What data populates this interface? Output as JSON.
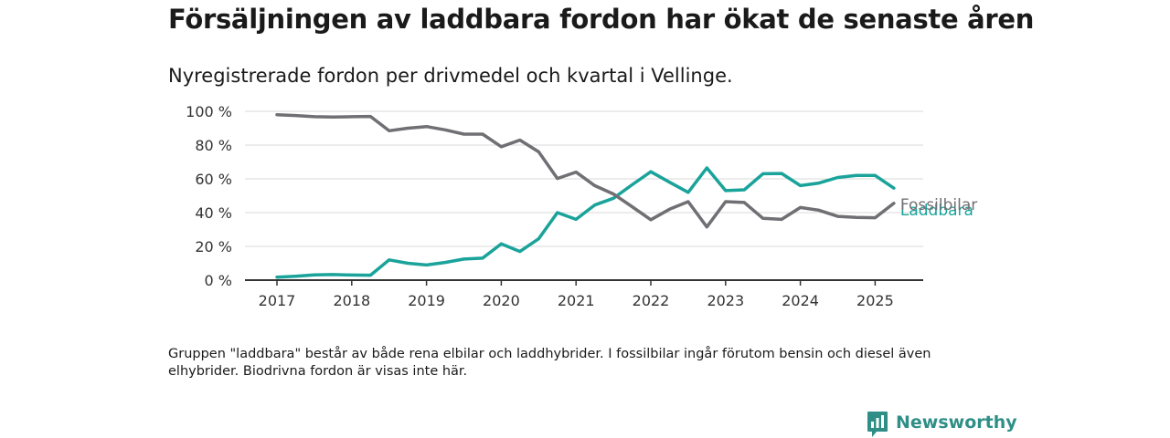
{
  "header": {
    "title": "Försäljningen av laddbara fordon har ökat de senaste åren",
    "subtitle": "Nyregistrerade fordon per drivmedel och kvartal i Vellinge."
  },
  "footer": {
    "note": "Gruppen \"laddbara\" består av både rena elbilar och laddhybrider. I fossilbilar ingår förutom bensin och diesel även elhybrider. Biodrivna fordon är visas inte här.",
    "brand": "Newsworthy",
    "brand_icon": "bar-chart-speech-bubble-icon",
    "brand_color": "#2f8f87"
  },
  "chart_data": {
    "type": "line",
    "x": [
      "2017-Q1",
      "2017-Q2",
      "2017-Q3",
      "2017-Q4",
      "2018-Q1",
      "2018-Q2",
      "2018-Q3",
      "2018-Q4",
      "2019-Q1",
      "2019-Q2",
      "2019-Q3",
      "2019-Q4",
      "2020-Q1",
      "2020-Q2",
      "2020-Q3",
      "2020-Q4",
      "2021-Q1",
      "2021-Q2",
      "2021-Q3",
      "2021-Q4",
      "2022-Q1",
      "2022-Q2",
      "2022-Q3",
      "2022-Q4",
      "2023-Q1",
      "2023-Q2",
      "2023-Q3",
      "2023-Q4",
      "2024-Q1",
      "2024-Q2",
      "2024-Q3",
      "2024-Q4",
      "2025-Q1",
      "2025-Q2"
    ],
    "x_ticks": [
      "2017",
      "2018",
      "2019",
      "2020",
      "2021",
      "2022",
      "2023",
      "2024",
      "2025"
    ],
    "y_ticks": [
      "0 %",
      "20 %",
      "40 %",
      "60 %",
      "80 %",
      "100 %"
    ],
    "ylim": [
      0,
      100
    ],
    "grid": true,
    "series": [
      {
        "name": "Fossilbilar",
        "color": "#707074",
        "values": [
          98,
          97.5,
          96.8,
          96.6,
          96.8,
          97,
          88.5,
          90,
          91,
          89,
          86.5,
          86.5,
          79,
          83,
          76,
          60.2,
          64,
          56,
          51,
          43.5,
          35.8,
          42,
          46.5,
          31.5,
          46.5,
          46,
          36.6,
          36,
          43,
          41.4,
          37.8,
          37.2,
          37,
          45.5
        ]
      },
      {
        "name": "Laddbara",
        "color": "#1aa39a",
        "values": [
          1.8,
          2.3,
          3.1,
          3.3,
          3.0,
          2.9,
          12,
          10,
          9,
          10.5,
          12.5,
          13,
          21.5,
          17,
          24.5,
          40,
          36,
          44.5,
          48.5,
          56.5,
          64.2,
          58,
          52,
          66.5,
          53,
          53.5,
          63,
          63.2,
          56,
          57.5,
          60.8,
          62,
          62,
          54.5
        ]
      }
    ]
  }
}
